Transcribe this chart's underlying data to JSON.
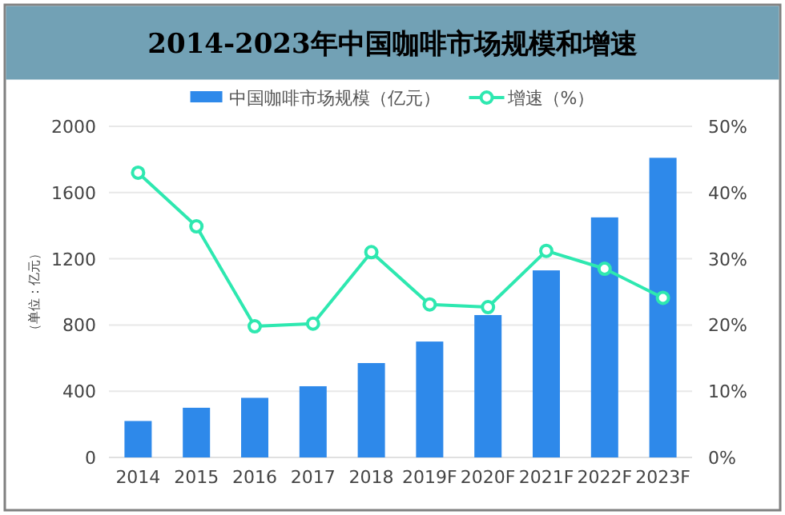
{
  "chart_data": {
    "type": "bar",
    "title": "2014-2023年中国咖啡市场规模和增速",
    "ylabel": "（单位：亿元）",
    "categories": [
      "2014",
      "2015",
      "2016",
      "2017",
      "2018",
      "2019F",
      "2020F",
      "2021F",
      "2022F",
      "2023F"
    ],
    "series": [
      {
        "name": "中国咖啡市场规模（亿元）",
        "color": "#2e89ea",
        "values": [
          220,
          300,
          360,
          430,
          570,
          700,
          860,
          1130,
          1450,
          1810
        ]
      },
      {
        "name": "增速（%）",
        "type": "line",
        "axis": "y2",
        "color": "#2ee8b0",
        "marker": "circle",
        "values": [
          43.0,
          34.9,
          19.8,
          20.2,
          31.0,
          23.1,
          22.7,
          31.2,
          28.5,
          24.1
        ]
      }
    ],
    "ylim": [
      0,
      2000
    ],
    "yticks": [
      0,
      400,
      800,
      1200,
      1600,
      2000
    ],
    "y2lim": [
      0,
      50
    ],
    "y2ticks": [
      {
        "value": 0,
        "label": "0%"
      },
      {
        "value": 10,
        "label": "10%"
      },
      {
        "value": 20,
        "label": "20%"
      },
      {
        "value": 30,
        "label": "30%"
      },
      {
        "value": 40,
        "label": "40%"
      },
      {
        "value": 50,
        "label": "50%"
      }
    ],
    "grid": "y",
    "legend": "top"
  }
}
